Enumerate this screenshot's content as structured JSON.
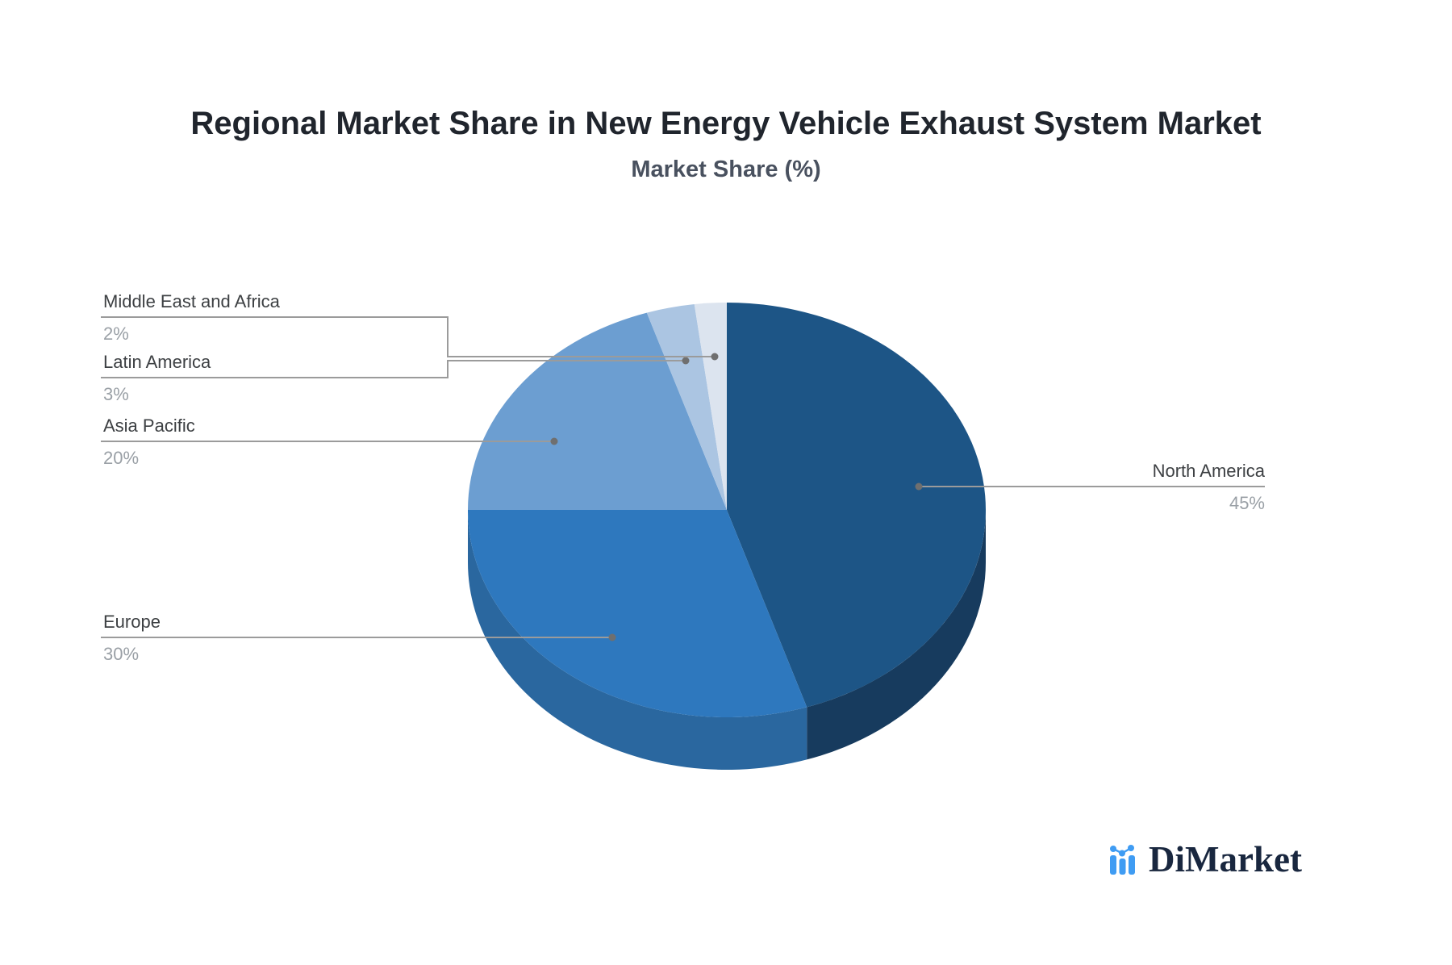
{
  "title": "Regional Market Share in New Energy Vehicle Exhaust System Market",
  "subtitle": "Market Share (%)",
  "chart_data": {
    "type": "pie",
    "title": "Regional Market Share in New Energy Vehicle Exhaust System Market",
    "subtitle": "Market Share (%)",
    "unit": "%",
    "style": "pseudo-3d-depth",
    "start_angle": "12-oclock",
    "direction": "clockwise",
    "legend_position": "none",
    "label_line_color": "#9b9b9b",
    "label_dot_color": "#6f6f6f",
    "label_name_color": "#3d4043",
    "label_value_color": "#9aa0a6",
    "slices": [
      {
        "name": "North America",
        "value": 45,
        "value_label": "45%",
        "color": "#1d5586",
        "side_color": "#173b5e"
      },
      {
        "name": "Europe",
        "value": 30,
        "value_label": "30%",
        "color": "#2e78be",
        "side_color": "#2a679f"
      },
      {
        "name": "Asia Pacific",
        "value": 20,
        "value_label": "20%",
        "color": "#6c9ed1",
        "side_color": "#5d8cbd"
      },
      {
        "name": "Latin America",
        "value": 3,
        "value_label": "3%",
        "color": "#abc5e2",
        "side_color": "#93afd0"
      },
      {
        "name": "Middle East and Africa",
        "value": 2,
        "value_label": "2%",
        "color": "#dce4ef",
        "side_color": "#c2cfdf"
      }
    ]
  },
  "logo": {
    "text": "DiMarket",
    "icon": "bar-line-chart-icon",
    "text_color": "#19273f",
    "icon_color": "#3f9cf3"
  }
}
